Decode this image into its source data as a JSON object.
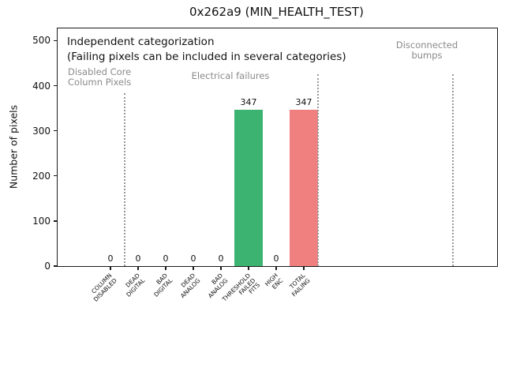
{
  "chart_data": {
    "type": "bar",
    "title": "0x262a9 (MIN_HEALTH_TEST)",
    "ylabel": "Number of pixels",
    "xlabel": "",
    "categories": [
      "COLUMN\nDISABLED",
      "DEAD\nDIGITAL",
      "BAD\nDIGITAL",
      "DEAD\nANALOG",
      "BAD\nANALOG",
      "THRESHOLD\nFAILED\nFITS",
      "HIGH\nENC",
      "TOTAL\nFAILING"
    ],
    "values": [
      0,
      0,
      0,
      0,
      0,
      347,
      0,
      347
    ],
    "value_labels": [
      "0",
      "0",
      "0",
      "0",
      "0",
      "347",
      "0",
      "347"
    ],
    "bar_colors": [
      null,
      null,
      null,
      null,
      null,
      "#3cb371",
      null,
      "#f08080"
    ],
    "yticks": [
      0,
      100,
      200,
      300,
      400,
      500
    ],
    "ylim": [
      0,
      527
    ],
    "xlim": [
      -2,
      14
    ],
    "grid": false,
    "legend": null,
    "annotations": {
      "note_line1": "Independent categorization",
      "note_line2": "(Failing pixels can be included in several categories)",
      "region_disabled_core": "Disabled Core\nColumn Pixels",
      "region_electrical": "Electrical failures",
      "region_disconnected": "Disconnected\nbumps"
    },
    "vlines": [
      {
        "x": 0.5,
        "style": "dotted",
        "color": "#999999"
      },
      {
        "x": 7.5,
        "style": "dotted",
        "color": "#999999"
      },
      {
        "x": 12.4,
        "style": "dotted",
        "color": "#999999"
      }
    ],
    "colors": {
      "bar_green": "#3cb371",
      "bar_red": "#f08080",
      "annotation_gray": "#8a8a8a",
      "vline_gray": "#999999",
      "spine": "#1a1a1a"
    }
  }
}
